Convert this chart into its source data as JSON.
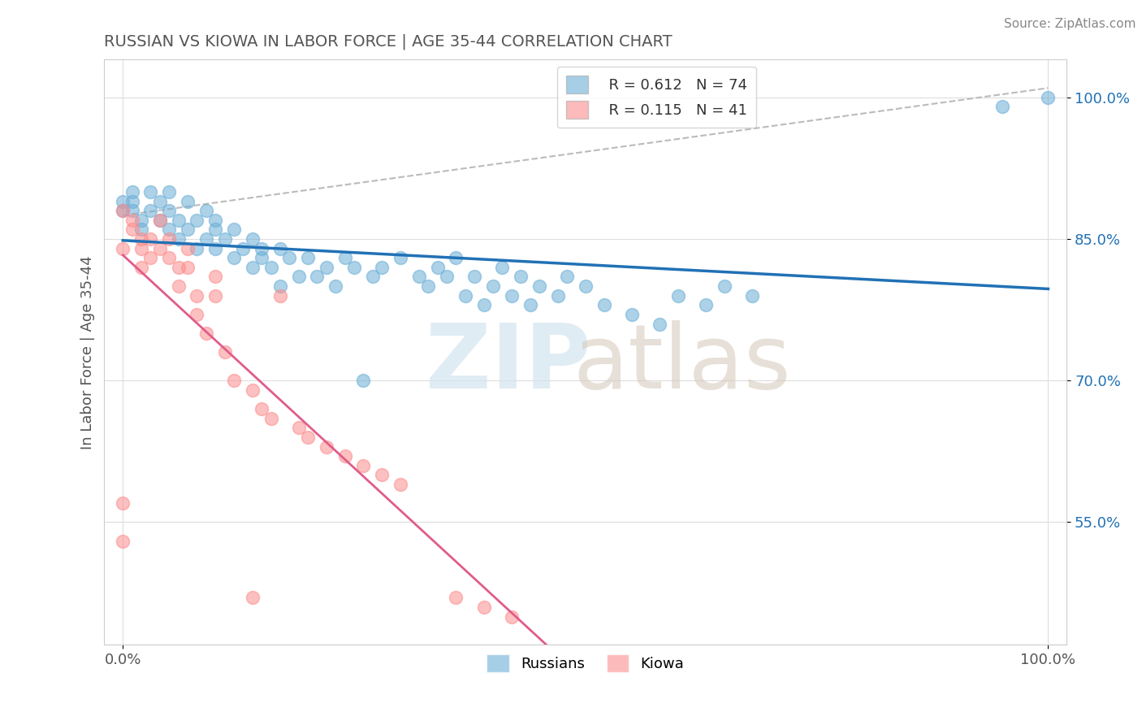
{
  "title": "RUSSIAN VS KIOWA IN LABOR FORCE | AGE 35-44 CORRELATION CHART",
  "source": "Source: ZipAtlas.com",
  "ylabel": "In Labor Force | Age 35-44",
  "legend_r_russian": "R = 0.612",
  "legend_n_russian": "N = 74",
  "legend_r_kiowa": "R = 0.115",
  "legend_n_kiowa": "N = 41",
  "russian_color": "#6baed6",
  "kiowa_color": "#fc8d8d",
  "russian_line_color": "#2171b5",
  "kiowa_line_color": "#e05c8a",
  "russian_scatter_x": [
    0.0,
    0.0,
    0.01,
    0.01,
    0.01,
    0.02,
    0.02,
    0.03,
    0.03,
    0.04,
    0.04,
    0.05,
    0.05,
    0.05,
    0.06,
    0.06,
    0.07,
    0.07,
    0.08,
    0.08,
    0.09,
    0.09,
    0.1,
    0.1,
    0.1,
    0.11,
    0.12,
    0.12,
    0.13,
    0.14,
    0.14,
    0.15,
    0.15,
    0.16,
    0.17,
    0.17,
    0.18,
    0.19,
    0.2,
    0.21,
    0.22,
    0.23,
    0.24,
    0.25,
    0.26,
    0.27,
    0.28,
    0.3,
    0.32,
    0.33,
    0.34,
    0.35,
    0.36,
    0.37,
    0.38,
    0.39,
    0.4,
    0.41,
    0.42,
    0.43,
    0.44,
    0.45,
    0.47,
    0.48,
    0.5,
    0.52,
    0.55,
    0.58,
    0.6,
    0.63,
    0.65,
    0.68,
    0.95,
    1.0
  ],
  "russian_scatter_y": [
    0.89,
    0.88,
    0.9,
    0.89,
    0.88,
    0.87,
    0.86,
    0.9,
    0.88,
    0.87,
    0.89,
    0.88,
    0.86,
    0.9,
    0.87,
    0.85,
    0.89,
    0.86,
    0.84,
    0.87,
    0.85,
    0.88,
    0.84,
    0.86,
    0.87,
    0.85,
    0.83,
    0.86,
    0.84,
    0.82,
    0.85,
    0.83,
    0.84,
    0.82,
    0.84,
    0.8,
    0.83,
    0.81,
    0.83,
    0.81,
    0.82,
    0.8,
    0.83,
    0.82,
    0.7,
    0.81,
    0.82,
    0.83,
    0.81,
    0.8,
    0.82,
    0.81,
    0.83,
    0.79,
    0.81,
    0.78,
    0.8,
    0.82,
    0.79,
    0.81,
    0.78,
    0.8,
    0.79,
    0.81,
    0.8,
    0.78,
    0.77,
    0.76,
    0.79,
    0.78,
    0.8,
    0.79,
    0.99,
    1.0
  ],
  "kiowa_scatter_x": [
    0.0,
    0.0,
    0.0,
    0.0,
    0.01,
    0.01,
    0.02,
    0.02,
    0.02,
    0.03,
    0.03,
    0.04,
    0.04,
    0.05,
    0.05,
    0.06,
    0.06,
    0.07,
    0.07,
    0.08,
    0.08,
    0.09,
    0.1,
    0.1,
    0.11,
    0.12,
    0.14,
    0.15,
    0.16,
    0.17,
    0.19,
    0.2,
    0.22,
    0.24,
    0.26,
    0.28,
    0.3,
    0.14,
    0.36,
    0.39,
    0.42
  ],
  "kiowa_scatter_y": [
    0.84,
    0.88,
    0.57,
    0.53,
    0.87,
    0.86,
    0.84,
    0.82,
    0.85,
    0.83,
    0.85,
    0.84,
    0.87,
    0.83,
    0.85,
    0.82,
    0.8,
    0.84,
    0.82,
    0.79,
    0.77,
    0.75,
    0.81,
    0.79,
    0.73,
    0.7,
    0.69,
    0.67,
    0.66,
    0.79,
    0.65,
    0.64,
    0.63,
    0.62,
    0.61,
    0.6,
    0.59,
    0.47,
    0.47,
    0.46,
    0.45
  ],
  "y_tick_values": [
    0.55,
    0.7,
    0.85,
    1.0
  ],
  "y_tick_labels": [
    "55.0%",
    "70.0%",
    "85.0%",
    "100.0%"
  ]
}
